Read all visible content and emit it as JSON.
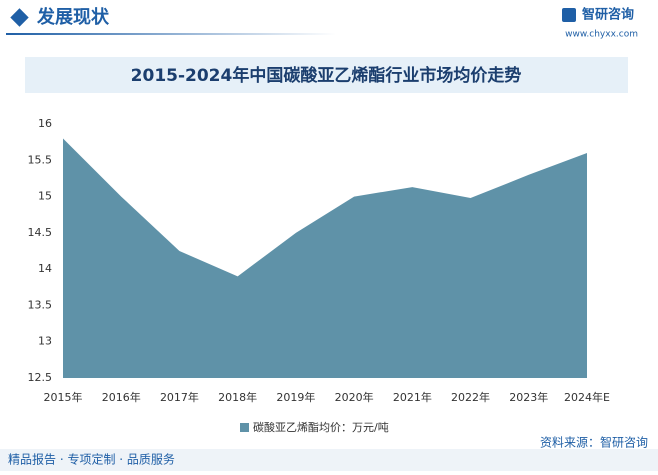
{
  "header": {
    "section": "发展现状",
    "logo": "智研咨询",
    "website": "www.chyxx.com"
  },
  "chart_data": {
    "type": "area",
    "title": "2015-2024年中国碳酸亚乙烯酯行业市场均价走势",
    "categories": [
      "2015年",
      "2016年",
      "2017年",
      "2018年",
      "2019年",
      "2020年",
      "2021年",
      "2022年",
      "2023年",
      "2024年E"
    ],
    "series": [
      {
        "name": "碳酸亚乙烯酯均价：万元/吨",
        "color": "#5f92a8",
        "values": [
          15.8,
          15.0,
          14.25,
          13.9,
          14.5,
          15.0,
          15.13,
          14.98,
          15.3,
          15.6
        ]
      }
    ],
    "ylim": [
      12.5,
      16
    ],
    "yticks": [
      12.5,
      13,
      13.5,
      14,
      14.5,
      15,
      15.5,
      16
    ],
    "legend": "bottom"
  },
  "footer": {
    "left": "精品报告 · 专项定制 · 品质服务",
    "source": "资料来源：智研咨询"
  }
}
